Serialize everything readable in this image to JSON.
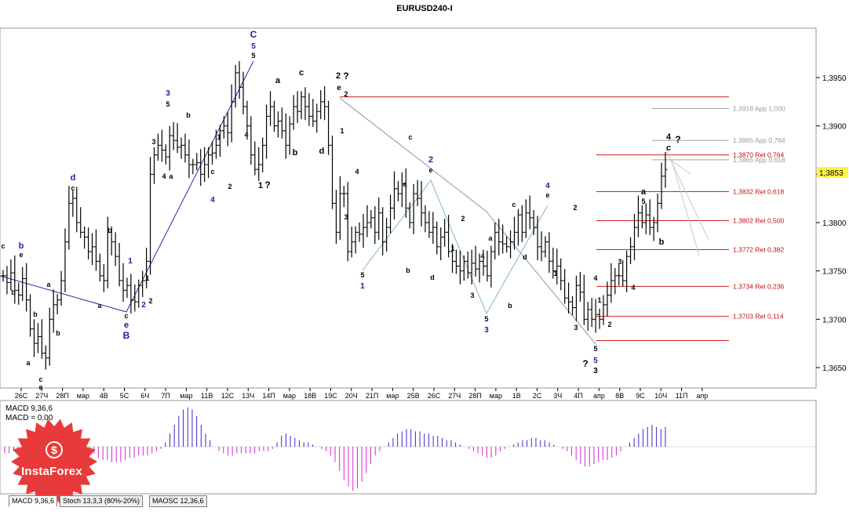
{
  "title": "EURUSD240-I",
  "chart_data": {
    "type": "candlestick",
    "symbol": "EURUSD240-I",
    "ylim": [
      1.3625,
      1.3995
    ],
    "y_ticks": [
      "1,3950",
      "1,3900",
      "1,3850",
      "1,3800",
      "1,3750",
      "1,3700",
      "1,3650"
    ],
    "current_price": "1,3853",
    "x_ticks": [
      "26С",
      "27Ч",
      "28П",
      "мар",
      "4В",
      "5С",
      "6Ч",
      "7П",
      "мар",
      "11В",
      "12С",
      "13Ч",
      "14П",
      "мар",
      "18В",
      "19С",
      "20Ч",
      "21П",
      "мар",
      "25В",
      "26С",
      "27Ч",
      "28П",
      "мар",
      "1В",
      "2С",
      "3Ч",
      "4П",
      "апр",
      "8В",
      "9С",
      "10Ч",
      "11П",
      "апр"
    ],
    "fib_levels": [
      {
        "label": "1,3918 App 1,000",
        "value": 1.3918,
        "kind": "app"
      },
      {
        "label": "1,3885 App 0,764",
        "value": 1.3885,
        "kind": "app"
      },
      {
        "label": "1,3870 Ret 0,764",
        "value": 1.387,
        "kind": "ret"
      },
      {
        "label": "1,3865 App 0,618",
        "value": 1.3865,
        "kind": "app"
      },
      {
        "label": "1,3832 Ret 0,618",
        "value": 1.3832,
        "kind": "ret"
      },
      {
        "label": "1,3802 Ret 0,500",
        "value": 1.3802,
        "kind": "ret"
      },
      {
        "label": "1,3772 Ret 0,382",
        "value": 1.3772,
        "kind": "ret"
      },
      {
        "label": "1,3734 Ret 0,236",
        "value": 1.3734,
        "kind": "ret"
      },
      {
        "label": "1,3703 Ret 0,114",
        "value": 1.3703,
        "kind": "ret"
      }
    ],
    "close_series": [
      1.3745,
      1.3738,
      1.3748,
      1.373,
      1.3725,
      1.3742,
      1.372,
      1.369,
      1.3675,
      1.3682,
      1.3665,
      1.366,
      1.37,
      1.3715,
      1.372,
      1.374,
      1.378,
      1.382,
      1.3825,
      1.38,
      1.379,
      1.3785,
      1.377,
      1.3775,
      1.376,
      1.3745,
      1.374,
      1.379,
      1.378,
      1.3765,
      1.374,
      1.373,
      1.3735,
      1.372,
      1.3718,
      1.3735,
      1.374,
      1.376,
      1.385,
      1.387,
      1.388,
      1.3875,
      1.3868,
      1.389,
      1.3885,
      1.3878,
      1.388,
      1.387,
      1.386,
      1.386,
      1.3862,
      1.385,
      1.386,
      1.387,
      1.3872,
      1.388,
      1.3895,
      1.39,
      1.3893,
      1.3925,
      1.3955,
      1.394,
      1.392,
      1.39,
      1.387,
      1.3855,
      1.386,
      1.388,
      1.391,
      1.392,
      1.39,
      1.3905,
      1.3895,
      1.388,
      1.3902,
      1.392,
      1.3915,
      1.393,
      1.392,
      1.391,
      1.3905,
      1.3915,
      1.3925,
      1.392,
      1.388,
      1.382,
      1.379,
      1.383,
      1.383,
      1.377,
      1.378,
      1.379,
      1.3788,
      1.3795,
      1.38,
      1.3805,
      1.379,
      1.381,
      1.378,
      1.3795,
      1.3815,
      1.3835,
      1.383,
      1.384,
      1.3815,
      1.38,
      1.383,
      1.3825,
      1.381,
      1.38,
      1.379,
      1.3795,
      1.3775,
      1.3785,
      1.379,
      1.377,
      1.376,
      1.3755,
      1.375,
      1.376,
      1.3748,
      1.3758,
      1.3752,
      1.376,
      1.3755,
      1.3745,
      1.377,
      1.379,
      1.378,
      1.3778,
      1.3775,
      1.378,
      1.379,
      1.3808,
      1.379,
      1.381,
      1.3805,
      1.3795,
      1.3775,
      1.377,
      1.378,
      1.376,
      1.375,
      1.3755,
      1.374,
      1.3722,
      1.3718,
      1.3712,
      1.3735,
      1.3728,
      1.37,
      1.371,
      1.37,
      1.3705,
      1.37,
      1.3715,
      1.3725,
      1.374,
      1.3745,
      1.3745,
      1.374,
      1.3765,
      1.3775,
      1.3795,
      1.381,
      1.38,
      1.3808,
      1.3795,
      1.38,
      1.382,
      1.3848,
      1.3855
    ],
    "wave_labels": [
      {
        "text": "C",
        "x": 323,
        "y": 48,
        "color": "#1c1ca8",
        "size": 12
      },
      {
        "text": "5",
        "x": 323,
        "y": 62,
        "color": "#1c1ca8",
        "size": 10
      },
      {
        "text": "5",
        "x": 323,
        "y": 74,
        "color": "#000",
        "size": 9
      },
      {
        "text": "a",
        "x": 354,
        "y": 106,
        "color": "#000",
        "size": 11
      },
      {
        "text": "c",
        "x": 384,
        "y": 96,
        "color": "#000",
        "size": 11
      },
      {
        "text": "2",
        "x": 431,
        "y": 100,
        "color": "#000",
        "size": 11
      },
      {
        "text": "?",
        "x": 441,
        "y": 101,
        "color": "#000",
        "size": 12
      },
      {
        "text": "e",
        "x": 432,
        "y": 115,
        "color": "#000",
        "size": 10
      },
      {
        "text": "2",
        "x": 441,
        "y": 123,
        "color": "#000",
        "size": 9
      },
      {
        "text": "3",
        "x": 214,
        "y": 122,
        "color": "#1c1ca8",
        "size": 10
      },
      {
        "text": "5",
        "x": 214,
        "y": 136,
        "color": "#000",
        "size": 9
      },
      {
        "text": "b",
        "x": 240,
        "y": 150,
        "color": "#000",
        "size": 9
      },
      {
        "text": "3",
        "x": 196,
        "y": 184,
        "color": "#000",
        "size": 9
      },
      {
        "text": "4",
        "x": 209,
        "y": 228,
        "color": "#000",
        "size": 9
      },
      {
        "text": "a",
        "x": 218,
        "y": 228,
        "color": "#000",
        "size": 9
      },
      {
        "text": "1",
        "x": 279,
        "y": 178,
        "color": "#000",
        "size": 9
      },
      {
        "text": "4",
        "x": 314,
        "y": 175,
        "color": "#000",
        "size": 9
      },
      {
        "text": "b",
        "x": 376,
        "y": 198,
        "color": "#000",
        "size": 11
      },
      {
        "text": "d",
        "x": 410,
        "y": 196,
        "color": "#000",
        "size": 11
      },
      {
        "text": "1",
        "x": 436,
        "y": 170,
        "color": "#000",
        "size": 9
      },
      {
        "text": "1",
        "x": 332,
        "y": 240,
        "color": "#000",
        "size": 11
      },
      {
        "text": "?",
        "x": 341,
        "y": 240,
        "color": "#000",
        "size": 12
      },
      {
        "text": "c",
        "x": 271,
        "y": 222,
        "color": "#000",
        "size": 9
      },
      {
        "text": "2",
        "x": 293,
        "y": 241,
        "color": "#000",
        "size": 9
      },
      {
        "text": "4",
        "x": 271,
        "y": 258,
        "color": "#1c1ca8",
        "size": 10
      },
      {
        "text": "d",
        "x": 93,
        "y": 230,
        "color": "#1c1ca8",
        "size": 11
      },
      {
        "text": "c",
        "x": 93,
        "y": 243,
        "color": "#000",
        "size": 9
      },
      {
        "text": "b",
        "x": 140,
        "y": 297,
        "color": "#000",
        "size": 9
      },
      {
        "text": "b",
        "x": 27,
        "y": 317,
        "color": "#1c1ca8",
        "size": 11
      },
      {
        "text": "e",
        "x": 27,
        "y": 328,
        "color": "#000",
        "size": 9
      },
      {
        "text": "c",
        "x": 4,
        "y": 317,
        "color": "#000",
        "size": 9
      },
      {
        "text": "b",
        "x": 17,
        "y": 376,
        "color": "#000",
        "size": 9
      },
      {
        "text": "a",
        "x": 62,
        "y": 366,
        "color": "#000",
        "size": 9
      },
      {
        "text": "a",
        "x": 127,
        "y": 393,
        "color": "#000",
        "size": 9
      },
      {
        "text": "1",
        "x": 166,
        "y": 336,
        "color": "#1c1ca8",
        "size": 10
      },
      {
        "text": "1",
        "x": 188,
        "y": 358,
        "color": "#000",
        "size": 9
      },
      {
        "text": "2",
        "x": 183,
        "y": 392,
        "color": "#1c1ca8",
        "size": 10
      },
      {
        "text": "2",
        "x": 192,
        "y": 387,
        "color": "#000",
        "size": 9
      },
      {
        "text": "c",
        "x": 161,
        "y": 406,
        "color": "#000",
        "size": 9
      },
      {
        "text": "e",
        "x": 161,
        "y": 418,
        "color": "#1c1ca8",
        "size": 11
      },
      {
        "text": "B",
        "x": 161,
        "y": 432,
        "color": "#1c1ca8",
        "size": 12
      },
      {
        "text": "b",
        "x": 45,
        "y": 404,
        "color": "#000",
        "size": 9
      },
      {
        "text": "b",
        "x": 74,
        "y": 428,
        "color": "#000",
        "size": 9
      },
      {
        "text": "a",
        "x": 36,
        "y": 466,
        "color": "#000",
        "size": 9
      },
      {
        "text": "c",
        "x": 52,
        "y": 487,
        "color": "#000",
        "size": 9
      },
      {
        "text": "e",
        "x": 52,
        "y": 497,
        "color": "#000",
        "size": 9
      },
      {
        "text": "4",
        "x": 455,
        "y": 222,
        "color": "#000",
        "size": 9
      },
      {
        "text": "3",
        "x": 441,
        "y": 280,
        "color": "#000",
        "size": 9
      },
      {
        "text": "5",
        "x": 462,
        "y": 354,
        "color": "#000",
        "size": 9
      },
      {
        "text": "1",
        "x": 462,
        "y": 368,
        "color": "#1c1ca8",
        "size": 10
      },
      {
        "text": "c",
        "x": 523,
        "y": 178,
        "color": "#000",
        "size": 9
      },
      {
        "text": "2",
        "x": 549,
        "y": 207,
        "color": "#1c1ca8",
        "size": 11
      },
      {
        "text": "e",
        "x": 549,
        "y": 220,
        "color": "#000",
        "size": 9
      },
      {
        "text": "a",
        "x": 516,
        "y": 238,
        "color": "#000",
        "size": 9
      },
      {
        "text": "b",
        "x": 520,
        "y": 348,
        "color": "#000",
        "size": 9
      },
      {
        "text": "d",
        "x": 551,
        "y": 357,
        "color": "#000",
        "size": 9
      },
      {
        "text": "2",
        "x": 590,
        "y": 282,
        "color": "#000",
        "size": 9
      },
      {
        "text": "1",
        "x": 577,
        "y": 320,
        "color": "#000",
        "size": 9
      },
      {
        "text": "4",
        "x": 615,
        "y": 330,
        "color": "#000",
        "size": 9
      },
      {
        "text": "3",
        "x": 602,
        "y": 380,
        "color": "#000",
        "size": 9
      },
      {
        "text": "a",
        "x": 625,
        "y": 307,
        "color": "#000",
        "size": 9
      },
      {
        "text": "5",
        "x": 620,
        "y": 410,
        "color": "#000",
        "size": 9
      },
      {
        "text": "3",
        "x": 620,
        "y": 424,
        "color": "#1c1ca8",
        "size": 10
      },
      {
        "text": "b",
        "x": 650,
        "y": 393,
        "color": "#000",
        "size": 9
      },
      {
        "text": "c",
        "x": 655,
        "y": 264,
        "color": "#000",
        "size": 9
      },
      {
        "text": "d",
        "x": 669,
        "y": 331,
        "color": "#000",
        "size": 9
      },
      {
        "text": "4",
        "x": 698,
        "y": 240,
        "color": "#1c1ca8",
        "size": 10
      },
      {
        "text": "e",
        "x": 698,
        "y": 252,
        "color": "#000",
        "size": 9
      },
      {
        "text": "1",
        "x": 708,
        "y": 352,
        "color": "#000",
        "size": 9
      },
      {
        "text": "2",
        "x": 733,
        "y": 268,
        "color": "#000",
        "size": 9
      },
      {
        "text": "4",
        "x": 759,
        "y": 358,
        "color": "#000",
        "size": 9
      },
      {
        "text": "3",
        "x": 734,
        "y": 421,
        "color": "#000",
        "size": 9
      },
      {
        "text": "1",
        "x": 764,
        "y": 386,
        "color": "#000",
        "size": 9
      },
      {
        "text": "2",
        "x": 777,
        "y": 417,
        "color": "#000",
        "size": 9
      },
      {
        "text": "5",
        "x": 759,
        "y": 448,
        "color": "#000",
        "size": 9
      },
      {
        "text": "5",
        "x": 759,
        "y": 463,
        "color": "#1c1ca8",
        "size": 10
      },
      {
        "text": "3",
        "x": 759,
        "y": 476,
        "color": "#000",
        "size": 10
      },
      {
        "text": "?",
        "x": 746,
        "y": 468,
        "color": "#000",
        "size": 12
      },
      {
        "text": "3",
        "x": 790,
        "y": 337,
        "color": "#000",
        "size": 9
      },
      {
        "text": "4",
        "x": 807,
        "y": 370,
        "color": "#000",
        "size": 9
      },
      {
        "text": "a",
        "x": 820,
        "y": 248,
        "color": "#000",
        "size": 11
      },
      {
        "text": "5",
        "x": 820,
        "y": 260,
        "color": "#000",
        "size": 9
      },
      {
        "text": "b",
        "x": 843,
        "y": 312,
        "color": "#000",
        "size": 11
      },
      {
        "text": "4",
        "x": 852,
        "y": 178,
        "color": "#000",
        "size": 11
      },
      {
        "text": "c",
        "x": 852,
        "y": 192,
        "color": "#000",
        "size": 11
      },
      {
        "text": "?",
        "x": 864,
        "y": 182,
        "color": "#000",
        "size": 12
      }
    ],
    "macd": {
      "label_main": "MACD 9,36,6",
      "label_value": "MACD = 0,00",
      "values": [
        -3,
        -3,
        -2,
        -3,
        -4,
        -3,
        -2,
        -1,
        1,
        3,
        5,
        7,
        9,
        10,
        9,
        8,
        6,
        4,
        2,
        -1,
        -3,
        -5,
        -6,
        -6,
        -7,
        -7,
        -7,
        -6,
        -5,
        -5,
        -4,
        -4,
        -4,
        -3,
        -2,
        -1,
        2,
        6,
        10,
        14,
        17,
        18,
        17,
        14,
        10,
        6,
        3,
        0,
        -2,
        -3,
        -4,
        -4,
        -3,
        -3,
        -3,
        -3,
        -3,
        -2,
        -2,
        -2,
        -1,
        2,
        5,
        6,
        5,
        4,
        3,
        2,
        2,
        1,
        0,
        -1,
        -2,
        -4,
        -7,
        -11,
        -15,
        -18,
        -20,
        -19,
        -16,
        -12,
        -8,
        -4,
        -2,
        0,
        2,
        4,
        6,
        7,
        8,
        8,
        7,
        7,
        6,
        6,
        5,
        5,
        4,
        3,
        3,
        2,
        1,
        0,
        -1,
        -2,
        -3,
        -4,
        -5,
        -5,
        -4,
        -2,
        -1,
        0,
        1,
        2,
        3,
        3,
        4,
        4,
        3,
        3,
        2,
        1,
        0,
        -1,
        -2,
        -4,
        -6,
        -8,
        -9,
        -9,
        -8,
        -7,
        -6,
        -6,
        -5,
        -4,
        -2,
        0,
        2,
        4,
        6,
        8,
        9,
        10,
        9,
        8,
        9
      ]
    },
    "logo_text": "InstaForex",
    "tabs": [
      "MACD 9,36,6",
      "Stoch 13,3,3 (80%-20%)",
      "MAOSC 12,36,6"
    ]
  }
}
